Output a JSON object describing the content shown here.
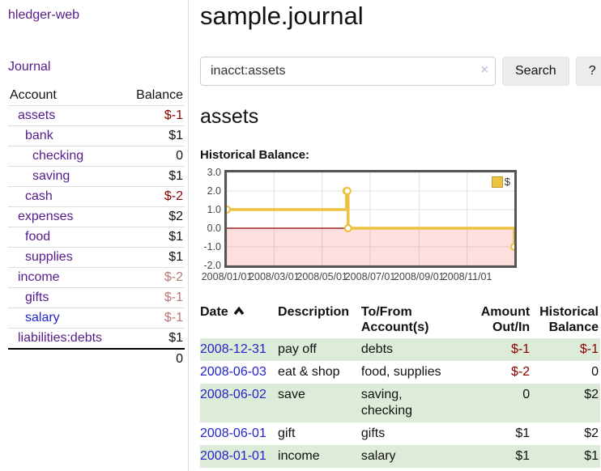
{
  "colors": {
    "purple_link": "#551a8b",
    "blue_link": "#2323cc",
    "negative_strong": "#8b0000",
    "negative_soft": "#b87878",
    "row_green": "#dcecd8",
    "chart_line": "#edc240",
    "chart_negative_fill": "rgba(255,0,0,0.13)"
  },
  "sidebar": {
    "brand": "hledger-web",
    "nav_journal": "Journal",
    "accounts": {
      "header_account": "Account",
      "header_balance": "Balance",
      "rows": [
        {
          "name": "assets",
          "balance": "$-1",
          "depth": 1,
          "bold": true,
          "balance_style": "neg-strong"
        },
        {
          "name": "bank",
          "balance": "$1",
          "depth": 2,
          "bold": true,
          "balance_style": "plain"
        },
        {
          "name": "checking",
          "balance": "0",
          "depth": 3,
          "bold": true,
          "balance_style": "plain"
        },
        {
          "name": "saving",
          "balance": "$1",
          "depth": 3,
          "bold": true,
          "balance_style": "plain"
        },
        {
          "name": "cash",
          "balance": "$-2",
          "depth": 2,
          "bold": true,
          "balance_style": "neg-strong"
        },
        {
          "name": "expenses",
          "balance": "$2",
          "depth": 1,
          "bold": false,
          "balance_style": "plain"
        },
        {
          "name": "food",
          "balance": "$1",
          "depth": 2,
          "bold": false,
          "balance_style": "plain"
        },
        {
          "name": "supplies",
          "balance": "$1",
          "depth": 2,
          "bold": false,
          "balance_style": "plain"
        },
        {
          "name": "income",
          "balance": "$-2",
          "depth": 1,
          "bold": false,
          "balance_style": "neg-soft"
        },
        {
          "name": "gifts",
          "balance": "$-1",
          "depth": 2,
          "bold": false,
          "balance_style": "neg-soft"
        },
        {
          "name": "salary",
          "balance": "$-1",
          "depth": 2,
          "bold": false,
          "balance_style": "neg-soft",
          "link_color": "blue"
        },
        {
          "name": "liabilities:debts",
          "balance": "$1",
          "depth": 1,
          "bold": false,
          "balance_style": "plain"
        }
      ],
      "total": "0"
    }
  },
  "main": {
    "title": "sample.journal",
    "search": {
      "value": "inacct:assets",
      "clear_icon": "×",
      "button_label": "Search",
      "help_label": "?"
    },
    "account_heading": "assets",
    "chart_label": "Historical Balance:"
  },
  "chart_data": {
    "type": "line",
    "step": true,
    "title": "Historical Balance:",
    "series": [
      {
        "name": "$",
        "color": "#edc240",
        "points": [
          [
            "2008-01-01",
            1
          ],
          [
            "2008-06-01",
            2
          ],
          [
            "2008-06-02",
            2
          ],
          [
            "2008-06-03",
            0
          ],
          [
            "2008-12-31",
            -1
          ]
        ]
      }
    ],
    "xrange": [
      "2008-01-01",
      "2008-12-31"
    ],
    "ylim": [
      -2,
      3
    ],
    "yticks": [
      "3.0",
      "2.0",
      "1.0",
      "0.0",
      "-1.0",
      "-2.0"
    ],
    "xticks": [
      "2008/01/01",
      "2008/03/01",
      "2008/05/01",
      "2008/07/01",
      "2008/09/01",
      "2008/11/01"
    ],
    "grid": true,
    "negative_region": {
      "from": 0,
      "to": -2,
      "fill": "rgba(255,0,0,0.13)",
      "line_color": "#8b0000"
    },
    "legend": {
      "position": "top-right",
      "entries": [
        "$"
      ]
    }
  },
  "register": {
    "headers": [
      {
        "line1": "Date",
        "line2": "",
        "sortable": true
      },
      {
        "line1": "Description",
        "line2": ""
      },
      {
        "line1": "To/From",
        "line2": "Account(s)"
      },
      {
        "line1": "Amount",
        "line2": "Out/In",
        "align": "right"
      },
      {
        "line1": "Historical",
        "line2": "Balance",
        "align": "right"
      }
    ],
    "rows": [
      {
        "date": "2008-12-31",
        "description": "pay off",
        "accounts": "debts",
        "amount": "$-1",
        "amount_negative": true,
        "balance": "$-1",
        "balance_negative": true,
        "green": true
      },
      {
        "date": "2008-06-03",
        "description": "eat & shop",
        "accounts": "food, supplies",
        "amount": "$-2",
        "amount_negative": true,
        "balance": "0",
        "balance_negative": false,
        "green": false
      },
      {
        "date": "2008-06-02",
        "description": "save",
        "accounts": "saving, checking",
        "amount": "0",
        "amount_negative": false,
        "balance": "$2",
        "balance_negative": false,
        "green": true
      },
      {
        "date": "2008-06-01",
        "description": "gift",
        "accounts": "gifts",
        "amount": "$1",
        "amount_negative": false,
        "balance": "$2",
        "balance_negative": false,
        "green": false
      },
      {
        "date": "2008-01-01",
        "description": "income",
        "accounts": "salary",
        "amount": "$1",
        "amount_negative": false,
        "balance": "$1",
        "balance_negative": false,
        "green": true
      }
    ]
  }
}
